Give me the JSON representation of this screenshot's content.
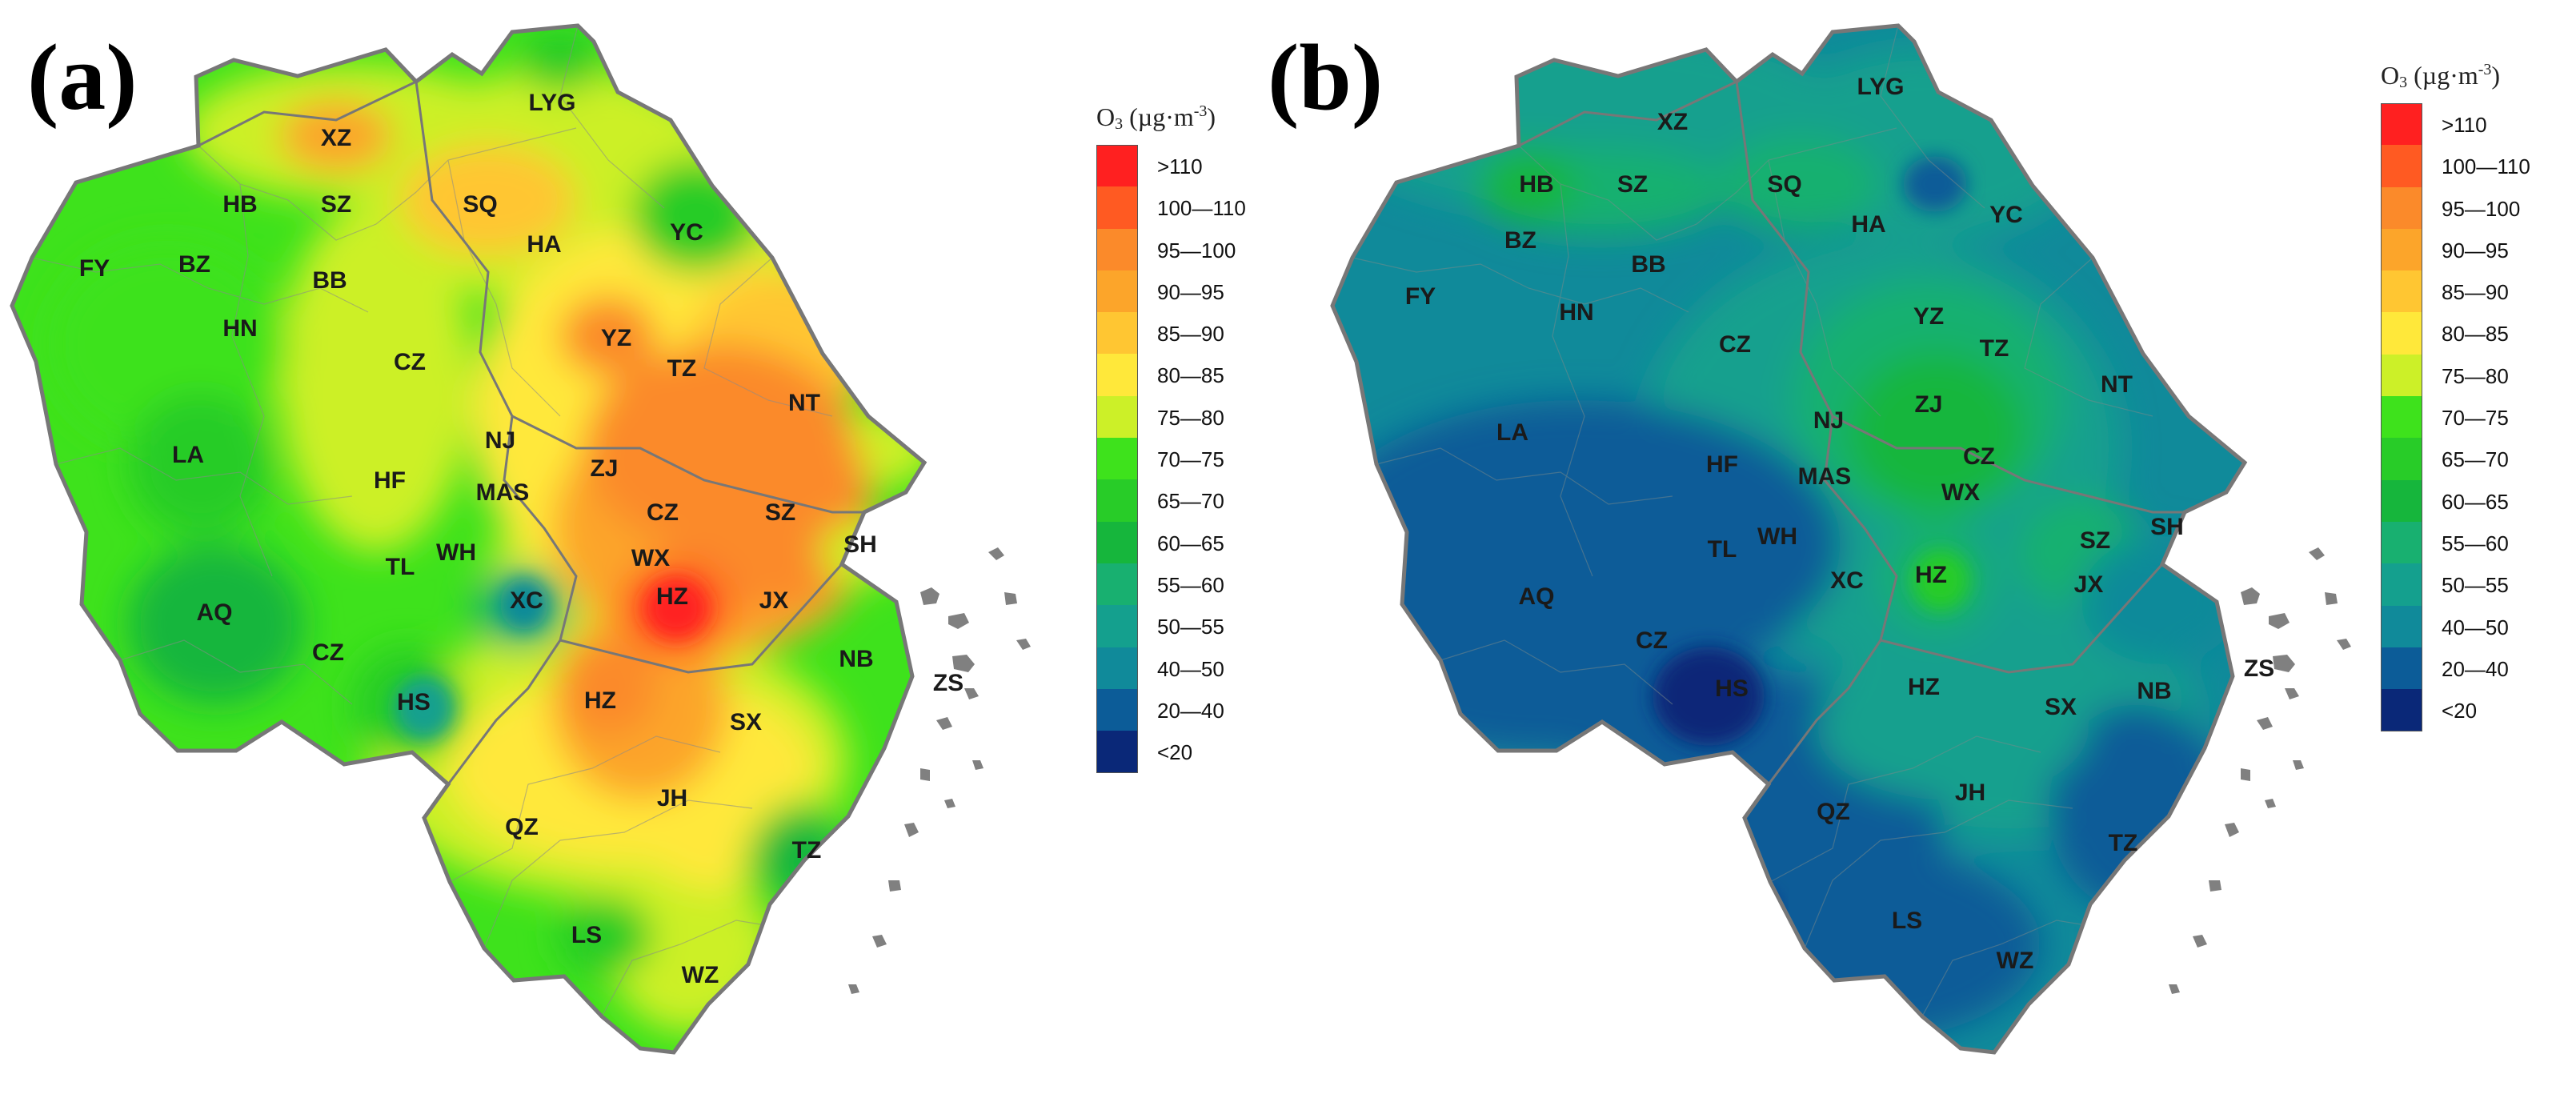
{
  "panels": [
    {
      "label": "(a)"
    },
    {
      "label": "(b)"
    }
  ],
  "legend": {
    "title_main": "O",
    "title_sub": "3",
    "title_unit_left": "(µg·m",
    "title_unit_sup": "-3",
    "title_unit_right": ")",
    "classes": [
      {
        "label": ">110",
        "color": "#ff2020"
      },
      {
        "label": "100—110",
        "color": "#ff5a22"
      },
      {
        "label": "95—100",
        "color": "#fb8a2a"
      },
      {
        "label": "90—95",
        "color": "#fca52a"
      },
      {
        "label": "85—90",
        "color": "#ffc632"
      },
      {
        "label": "80—85",
        "color": "#ffe83a"
      },
      {
        "label": "75—80",
        "color": "#ccf028"
      },
      {
        "label": "70—75",
        "color": "#3ee21c"
      },
      {
        "label": "65—70",
        "color": "#28cc28"
      },
      {
        "label": "60—65",
        "color": "#16b63c"
      },
      {
        "label": "55—60",
        "color": "#18b070"
      },
      {
        "label": "50—55",
        "color": "#14a08e"
      },
      {
        "label": "40—50",
        "color": "#108a9a"
      },
      {
        "label": "20—40",
        "color": "#0c5c98"
      },
      {
        "label": "<20",
        "color": "#0a2878"
      }
    ]
  },
  "map_a": {
    "base_color": "#3ee21c",
    "cities": [
      {
        "name": "XZ"
      },
      {
        "name": "LYG"
      },
      {
        "name": "HB"
      },
      {
        "name": "SZ"
      },
      {
        "name": "SQ"
      },
      {
        "name": "HA"
      },
      {
        "name": "YC"
      },
      {
        "name": "BZ"
      },
      {
        "name": "BB"
      },
      {
        "name": "FY"
      },
      {
        "name": "HN"
      },
      {
        "name": "CZ"
      },
      {
        "name": "YZ"
      },
      {
        "name": "TZ"
      },
      {
        "name": "NT"
      },
      {
        "name": "NJ"
      },
      {
        "name": "ZJ"
      },
      {
        "name": "LA"
      },
      {
        "name": "HF"
      },
      {
        "name": "MAS"
      },
      {
        "name": "CZ"
      },
      {
        "name": "WX"
      },
      {
        "name": "SZ"
      },
      {
        "name": "SH"
      },
      {
        "name": "WH"
      },
      {
        "name": "TL"
      },
      {
        "name": "XC"
      },
      {
        "name": "HZ"
      },
      {
        "name": "AQ"
      },
      {
        "name": "JX"
      },
      {
        "name": "CZ"
      },
      {
        "name": "HS"
      },
      {
        "name": "HZ"
      },
      {
        "name": "SX"
      },
      {
        "name": "NB"
      },
      {
        "name": "ZS"
      },
      {
        "name": "JH"
      },
      {
        "name": "QZ"
      },
      {
        "name": "TZ"
      },
      {
        "name": "LS"
      },
      {
        "name": "WZ"
      }
    ]
  },
  "map_b": {
    "base_color": "#108a9a",
    "cities": [
      {
        "name": "XZ"
      },
      {
        "name": "LYG"
      },
      {
        "name": "HB"
      },
      {
        "name": "SZ"
      },
      {
        "name": "SQ"
      },
      {
        "name": "HA"
      },
      {
        "name": "YC"
      },
      {
        "name": "BZ"
      },
      {
        "name": "BB"
      },
      {
        "name": "FY"
      },
      {
        "name": "HN"
      },
      {
        "name": "CZ"
      },
      {
        "name": "YZ"
      },
      {
        "name": "TZ"
      },
      {
        "name": "NT"
      },
      {
        "name": "NJ"
      },
      {
        "name": "ZJ"
      },
      {
        "name": "LA"
      },
      {
        "name": "HF"
      },
      {
        "name": "MAS"
      },
      {
        "name": "CZ"
      },
      {
        "name": "WX"
      },
      {
        "name": "SZ"
      },
      {
        "name": "SH"
      },
      {
        "name": "WH"
      },
      {
        "name": "TL"
      },
      {
        "name": "XC"
      },
      {
        "name": "HZ"
      },
      {
        "name": "AQ"
      },
      {
        "name": "JX"
      },
      {
        "name": "CZ"
      },
      {
        "name": "HS"
      },
      {
        "name": "HZ"
      },
      {
        "name": "SX"
      },
      {
        "name": "NB"
      },
      {
        "name": "ZS"
      },
      {
        "name": "JH"
      },
      {
        "name": "QZ"
      },
      {
        "name": "TZ"
      },
      {
        "name": "LS"
      },
      {
        "name": "WZ"
      }
    ]
  }
}
